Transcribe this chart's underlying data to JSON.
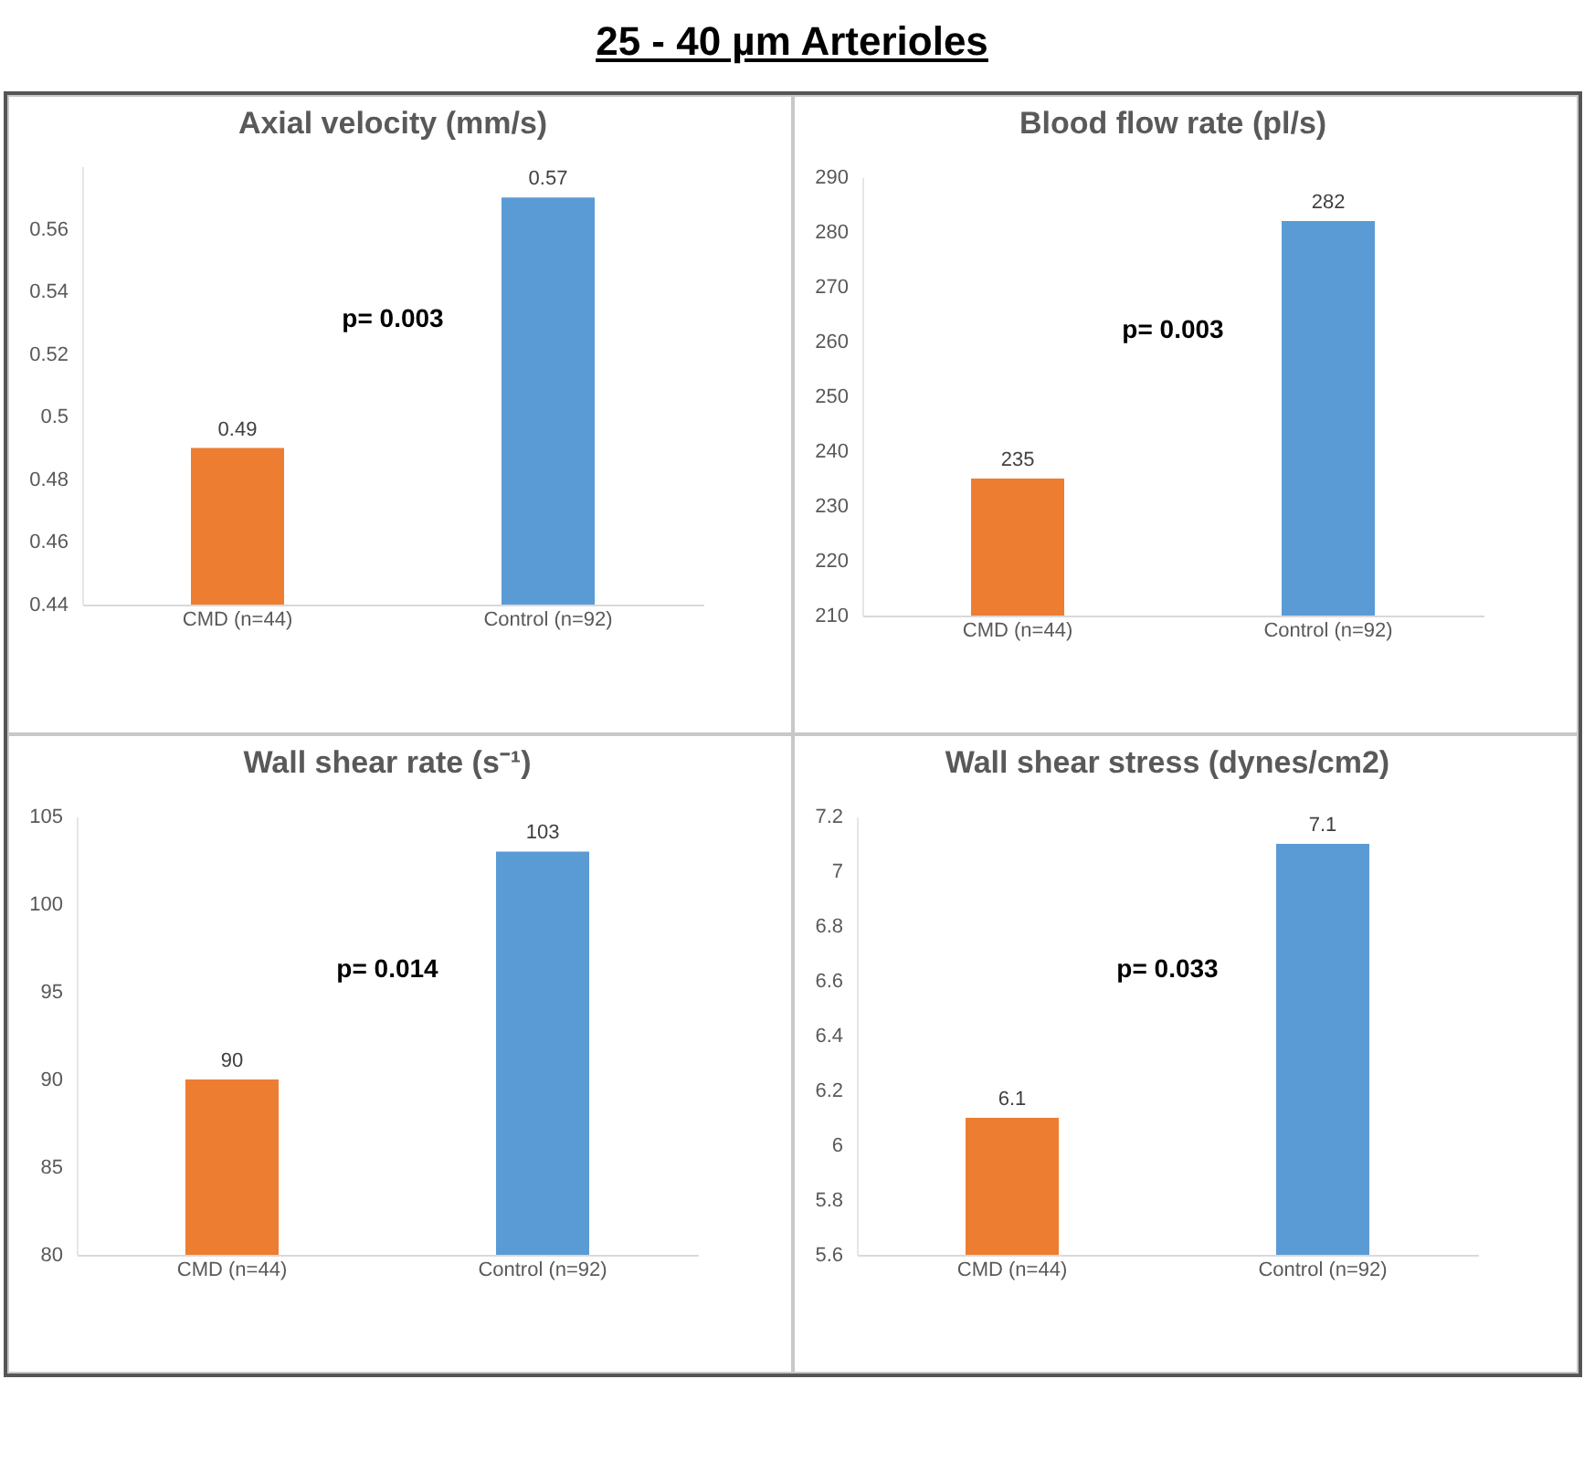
{
  "chart_data": [
    {
      "type": "other",
      "title": "25 - 40 µm Arterioles"
    },
    {
      "type": "bar",
      "title": "Axial velocity (mm/s)",
      "categories": [
        "CMD (n=44)",
        "Control (n=92)"
      ],
      "values": [
        0.49,
        0.57
      ],
      "colors": [
        "#ed7d31",
        "#5b9bd5"
      ],
      "ylim": [
        0.44,
        0.58
      ],
      "yticks": [
        0.44,
        0.46,
        0.48,
        0.5,
        0.52,
        0.54,
        0.56
      ],
      "data_labels": true,
      "annotations": [
        "p= 0.003"
      ]
    },
    {
      "type": "bar",
      "title": "Blood flow rate (pl/s)",
      "categories": [
        "CMD (n=44)",
        "Control (n=92)"
      ],
      "values": [
        235,
        282
      ],
      "colors": [
        "#ed7d31",
        "#5b9bd5"
      ],
      "ylim": [
        210,
        290
      ],
      "yticks": [
        210,
        220,
        230,
        240,
        250,
        260,
        270,
        280,
        290
      ],
      "data_labels": true,
      "annotations": [
        "p= 0.003"
      ]
    },
    {
      "type": "bar",
      "title": "Wall shear rate (s⁻¹)",
      "categories": [
        "CMD (n=44)",
        "Control (n=92)"
      ],
      "values": [
        90,
        103
      ],
      "colors": [
        "#ed7d31",
        "#5b9bd5"
      ],
      "ylim": [
        80,
        105
      ],
      "yticks": [
        80,
        85,
        90,
        95,
        100,
        105
      ],
      "data_labels": true,
      "annotations": [
        "p= 0.014"
      ]
    },
    {
      "type": "bar",
      "title": "Wall shear stress (dynes/cm2)",
      "categories": [
        "CMD (n=44)",
        "Control (n=92)"
      ],
      "values": [
        6.1,
        7.1
      ],
      "colors": [
        "#ed7d31",
        "#5b9bd5"
      ],
      "ylim": [
        5.6,
        7.2
      ],
      "yticks": [
        5.6,
        5.8,
        6,
        6.2,
        6.4,
        6.6,
        6.8,
        7,
        7.2
      ],
      "data_labels": true,
      "annotations": [
        "p= 0.033"
      ]
    }
  ]
}
